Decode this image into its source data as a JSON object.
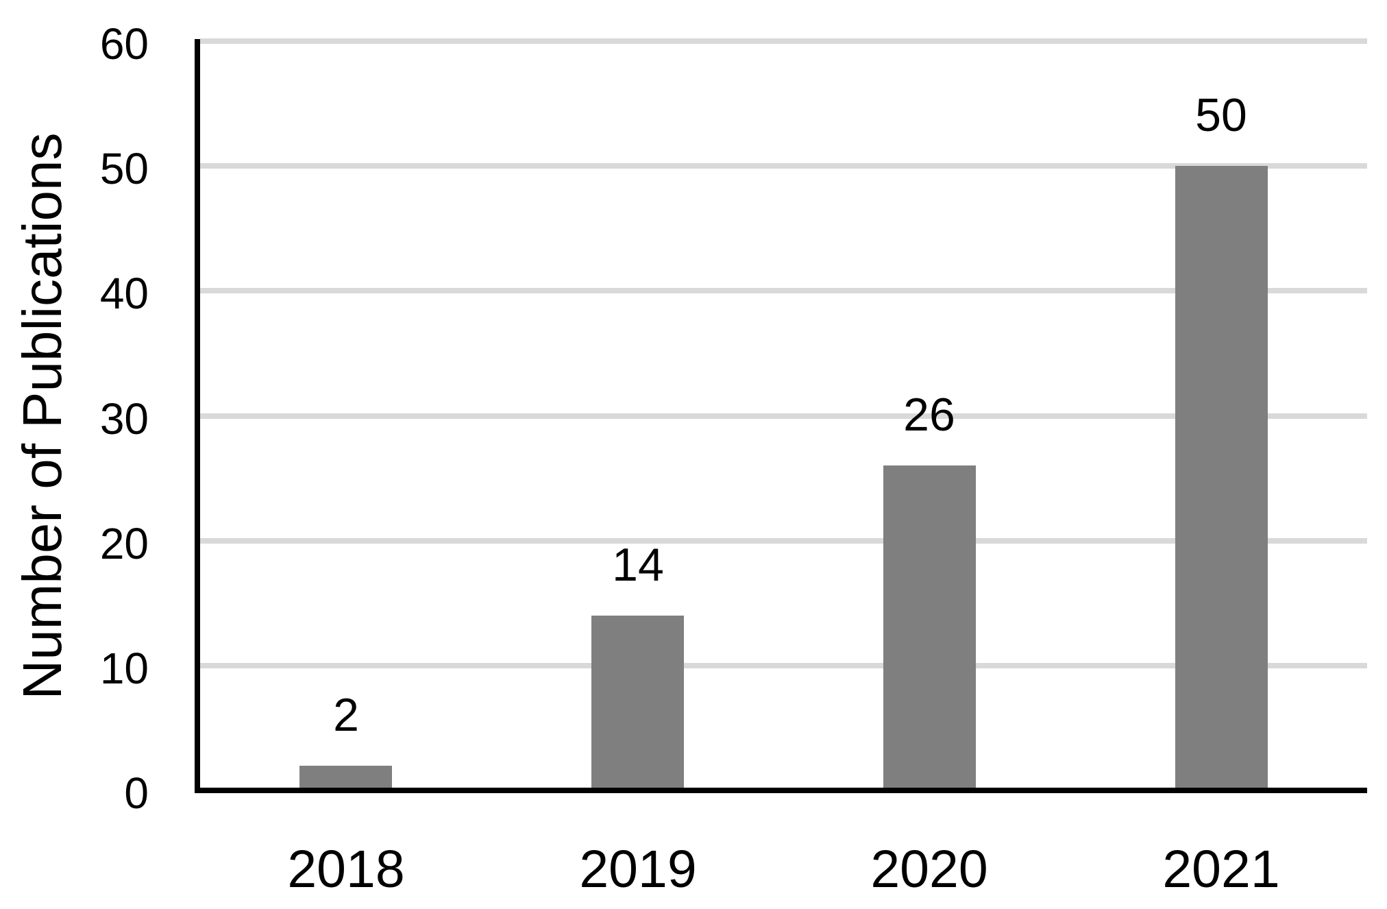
{
  "chart_data": {
    "type": "bar",
    "title": "",
    "categories": [
      "2018",
      "2019",
      "2020",
      "2021"
    ],
    "values": [
      2,
      14,
      26,
      50
    ],
    "data_labels": [
      "2",
      "14",
      "26",
      "50"
    ],
    "xlabel": "",
    "ylabel": "Number of Publications",
    "ylim": [
      0,
      60
    ],
    "yticks": [
      0,
      10,
      20,
      30,
      40,
      50,
      60
    ],
    "grid": "horizontal",
    "legend": "none",
    "bar_color": "#7f7f7f",
    "gridline_color": "#d9d9d9",
    "axis_color": "#000000",
    "text_color": "#000000",
    "background_color": "#ffffff"
  }
}
